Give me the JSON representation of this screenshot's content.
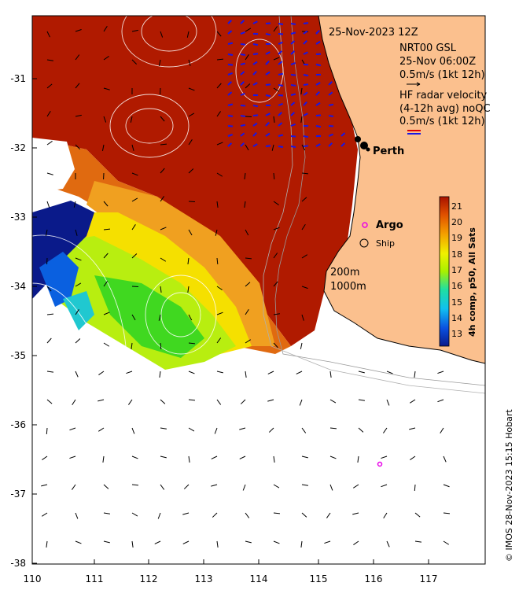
{
  "map": {
    "date_label": "25-Nov-2023 12Z",
    "model_title": "NRT00 GSL",
    "model_time": "25-Nov 06:00Z",
    "model_scale": "0.5m/s (1kt 12h)",
    "hf_title_line1": "HF radar velocity",
    "hf_title_line2": "(4-12h avg) noQC",
    "hf_scale": "0.5m/s (1kt 12h)",
    "city": "Perth",
    "argo_label": "Argo",
    "ship_label": "Ship",
    "isobath_200": "200m",
    "isobath_1000": "1000m",
    "colorbar_title": "4h comp, p50, All Sats",
    "colorbar_ticks": [
      "21",
      "20",
      "19",
      "18",
      "17",
      "16",
      "15",
      "14",
      "13"
    ],
    "credit": "© IMOS 28-Nov-2023 15:15 Hobart",
    "x_ticks": [
      "110",
      "111",
      "112",
      "113",
      "114",
      "115",
      "116",
      "117"
    ],
    "y_ticks": [
      "-31",
      "-32",
      "-33",
      "-34",
      "-35",
      "-36",
      "-37",
      "-38"
    ],
    "colors": {
      "land": "#fbc08e",
      "sst_21": "#a81200",
      "sst_13": "#0a1a8a",
      "hf_arrow": "#1717e6",
      "argo": "#e800e8"
    }
  }
}
